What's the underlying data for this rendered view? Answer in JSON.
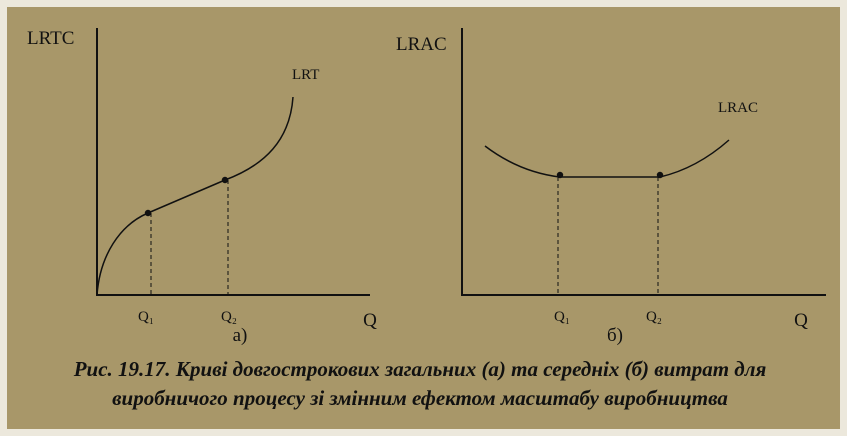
{
  "panel_a": {
    "y_axis_label": "LRTC",
    "curve_label": "LRT",
    "q1": "Q₁",
    "q2": "Q₂",
    "x_axis_label": "Q",
    "letter": "а)"
  },
  "panel_b": {
    "y_axis_label": "LRAC",
    "curve_label": "LRAC",
    "q1": "Q₁",
    "q2": "Q₂",
    "x_axis_label": "Q",
    "letter": "б)"
  },
  "caption": {
    "lines": [
      "Рис. 19.17. Криві довгострокових загальних (а) та середніх (б) витрат для",
      "виробничого процесу зі змінним ефектом масштабу виробництва"
    ]
  }
}
